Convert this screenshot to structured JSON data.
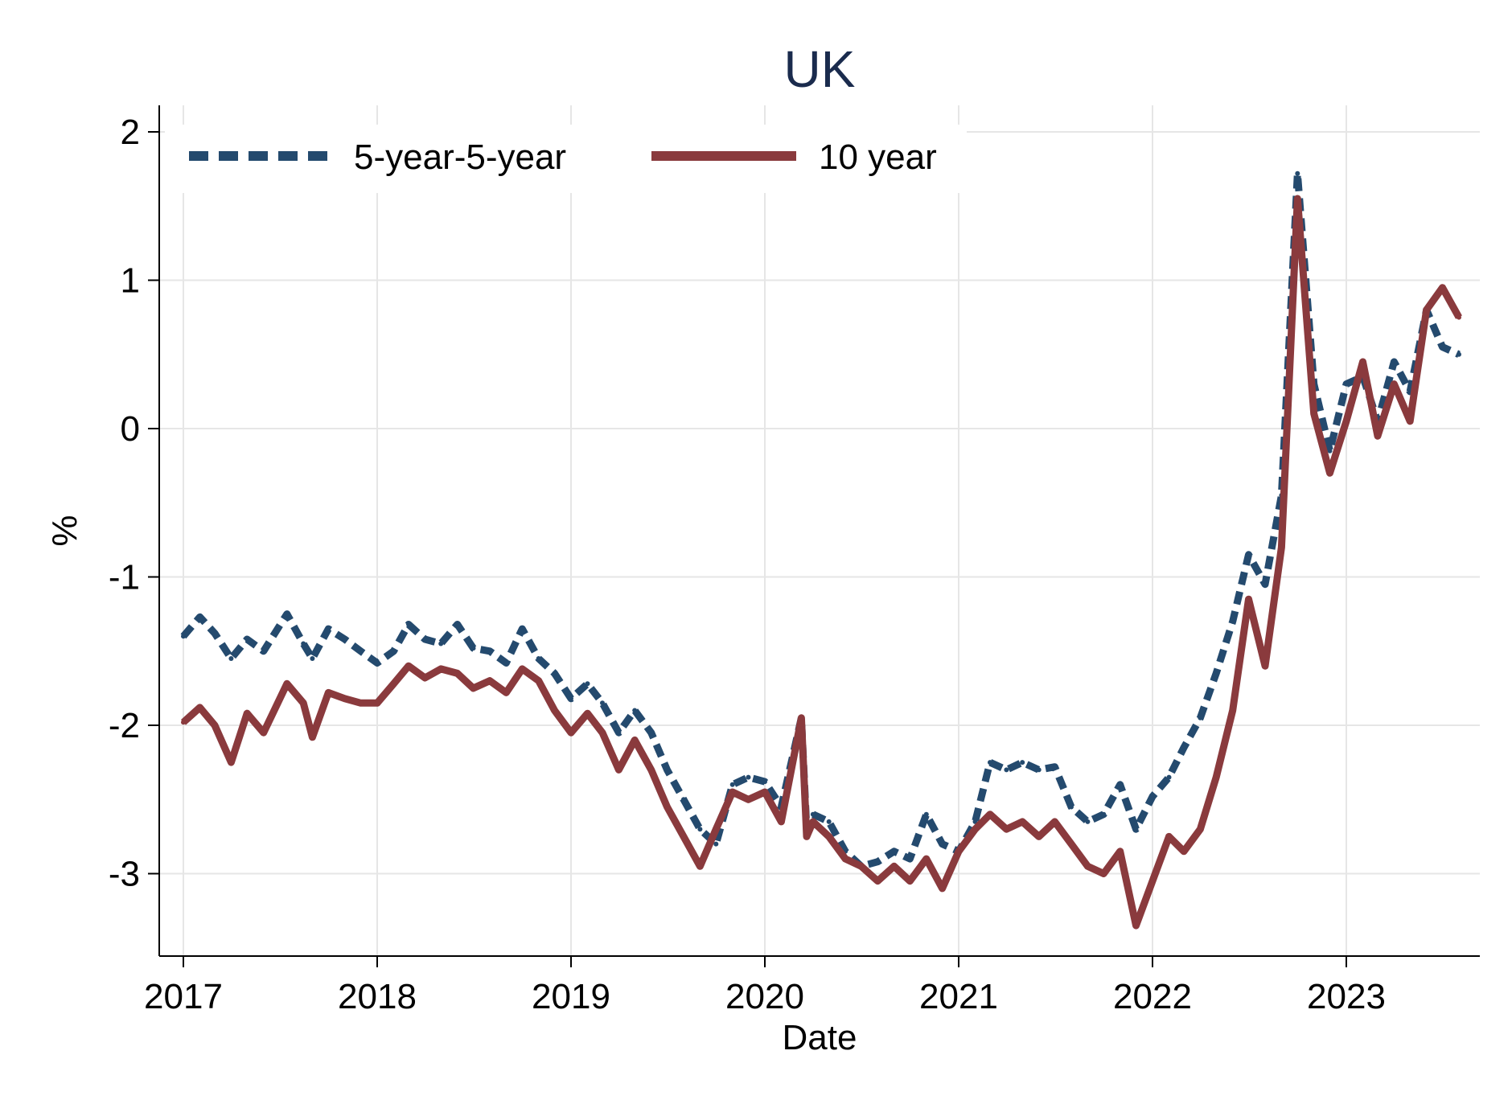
{
  "chart_data": {
    "type": "line",
    "title": "UK",
    "xlabel": "Date",
    "ylabel": "%",
    "x_ticks": [
      "2017",
      "2018",
      "2019",
      "2020",
      "2021",
      "2022",
      "2023"
    ],
    "y_ticks": [
      "2",
      "1",
      "0",
      "-1",
      "-2",
      "-3"
    ],
    "xlim": [
      "2017-01-01",
      "2023-08-01"
    ],
    "ylim": [
      -3.6,
      2.15
    ],
    "grid": true,
    "legend": {
      "placement": "top-left",
      "columns": 2
    },
    "series": [
      {
        "name": "5-year-5-year",
        "color": "#244a6e",
        "style": "dashed",
        "points": [
          [
            "2017-01-01",
            -1.4
          ],
          [
            "2017-02-01",
            -1.27
          ],
          [
            "2017-03-01",
            -1.38
          ],
          [
            "2017-04-01",
            -1.55
          ],
          [
            "2017-05-01",
            -1.42
          ],
          [
            "2017-06-01",
            -1.5
          ],
          [
            "2017-07-15",
            -1.25
          ],
          [
            "2017-08-15",
            -1.45
          ],
          [
            "2017-09-01",
            -1.55
          ],
          [
            "2017-10-01",
            -1.35
          ],
          [
            "2017-11-01",
            -1.42
          ],
          [
            "2017-12-01",
            -1.5
          ],
          [
            "2018-01-01",
            -1.58
          ],
          [
            "2018-02-01",
            -1.5
          ],
          [
            "2018-03-01",
            -1.32
          ],
          [
            "2018-04-01",
            -1.42
          ],
          [
            "2018-05-01",
            -1.45
          ],
          [
            "2018-06-01",
            -1.32
          ],
          [
            "2018-07-01",
            -1.48
          ],
          [
            "2018-08-01",
            -1.5
          ],
          [
            "2018-09-01",
            -1.58
          ],
          [
            "2018-10-01",
            -1.35
          ],
          [
            "2018-11-01",
            -1.55
          ],
          [
            "2018-12-01",
            -1.65
          ],
          [
            "2019-01-01",
            -1.82
          ],
          [
            "2019-02-01",
            -1.72
          ],
          [
            "2019-03-01",
            -1.85
          ],
          [
            "2019-04-01",
            -2.05
          ],
          [
            "2019-05-01",
            -1.9
          ],
          [
            "2019-06-01",
            -2.05
          ],
          [
            "2019-07-01",
            -2.3
          ],
          [
            "2019-08-01",
            -2.5
          ],
          [
            "2019-09-01",
            -2.7
          ],
          [
            "2019-10-01",
            -2.8
          ],
          [
            "2019-11-01",
            -2.4
          ],
          [
            "2019-12-01",
            -2.35
          ],
          [
            "2020-01-01",
            -2.38
          ],
          [
            "2020-02-01",
            -2.55
          ],
          [
            "2020-03-10",
            -1.95
          ],
          [
            "2020-03-20",
            -2.7
          ],
          [
            "2020-04-01",
            -2.6
          ],
          [
            "2020-05-01",
            -2.65
          ],
          [
            "2020-06-01",
            -2.85
          ],
          [
            "2020-07-01",
            -2.95
          ],
          [
            "2020-08-01",
            -2.92
          ],
          [
            "2020-09-01",
            -2.85
          ],
          [
            "2020-10-01",
            -2.9
          ],
          [
            "2020-11-01",
            -2.6
          ],
          [
            "2020-12-01",
            -2.8
          ],
          [
            "2021-01-01",
            -2.85
          ],
          [
            "2021-02-01",
            -2.65
          ],
          [
            "2021-03-01",
            -2.25
          ],
          [
            "2021-04-01",
            -2.3
          ],
          [
            "2021-05-01",
            -2.25
          ],
          [
            "2021-06-01",
            -2.3
          ],
          [
            "2021-07-01",
            -2.28
          ],
          [
            "2021-08-01",
            -2.55
          ],
          [
            "2021-09-01",
            -2.65
          ],
          [
            "2021-10-01",
            -2.6
          ],
          [
            "2021-11-01",
            -2.4
          ],
          [
            "2021-12-01",
            -2.7
          ],
          [
            "2022-01-01",
            -2.48
          ],
          [
            "2022-02-01",
            -2.35
          ],
          [
            "2022-03-01",
            -2.15
          ],
          [
            "2022-04-01",
            -1.95
          ],
          [
            "2022-05-01",
            -1.65
          ],
          [
            "2022-06-01",
            -1.3
          ],
          [
            "2022-07-01",
            -0.85
          ],
          [
            "2022-08-01",
            -1.05
          ],
          [
            "2022-09-01",
            -0.45
          ],
          [
            "2022-10-01",
            1.72
          ],
          [
            "2022-11-01",
            0.3
          ],
          [
            "2022-12-01",
            -0.15
          ],
          [
            "2023-01-01",
            0.3
          ],
          [
            "2023-02-01",
            0.35
          ],
          [
            "2023-03-01",
            0.05
          ],
          [
            "2023-04-01",
            0.45
          ],
          [
            "2023-05-01",
            0.25
          ],
          [
            "2023-06-01",
            0.8
          ],
          [
            "2023-07-01",
            0.55
          ],
          [
            "2023-08-01",
            0.5
          ]
        ]
      },
      {
        "name": "10 year",
        "color": "#8a3a3d",
        "style": "solid",
        "points": [
          [
            "2017-01-01",
            -1.98
          ],
          [
            "2017-02-01",
            -1.88
          ],
          [
            "2017-03-01",
            -2.0
          ],
          [
            "2017-04-01",
            -2.25
          ],
          [
            "2017-05-01",
            -1.92
          ],
          [
            "2017-06-01",
            -2.05
          ],
          [
            "2017-07-15",
            -1.72
          ],
          [
            "2017-08-15",
            -1.85
          ],
          [
            "2017-09-01",
            -2.08
          ],
          [
            "2017-10-01",
            -1.78
          ],
          [
            "2017-11-01",
            -1.82
          ],
          [
            "2017-12-01",
            -1.85
          ],
          [
            "2018-01-01",
            -1.85
          ],
          [
            "2018-02-01",
            -1.72
          ],
          [
            "2018-03-01",
            -1.6
          ],
          [
            "2018-04-01",
            -1.68
          ],
          [
            "2018-05-01",
            -1.62
          ],
          [
            "2018-06-01",
            -1.65
          ],
          [
            "2018-07-01",
            -1.75
          ],
          [
            "2018-08-01",
            -1.7
          ],
          [
            "2018-09-01",
            -1.78
          ],
          [
            "2018-10-01",
            -1.62
          ],
          [
            "2018-11-01",
            -1.7
          ],
          [
            "2018-12-01",
            -1.9
          ],
          [
            "2019-01-01",
            -2.05
          ],
          [
            "2019-02-01",
            -1.92
          ],
          [
            "2019-03-01",
            -2.05
          ],
          [
            "2019-04-01",
            -2.3
          ],
          [
            "2019-05-01",
            -2.1
          ],
          [
            "2019-06-01",
            -2.3
          ],
          [
            "2019-07-01",
            -2.55
          ],
          [
            "2019-08-01",
            -2.75
          ],
          [
            "2019-09-01",
            -2.95
          ],
          [
            "2019-10-01",
            -2.7
          ],
          [
            "2019-11-01",
            -2.45
          ],
          [
            "2019-12-01",
            -2.5
          ],
          [
            "2020-01-01",
            -2.45
          ],
          [
            "2020-02-01",
            -2.65
          ],
          [
            "2020-03-10",
            -1.95
          ],
          [
            "2020-03-20",
            -2.75
          ],
          [
            "2020-04-01",
            -2.65
          ],
          [
            "2020-05-01",
            -2.75
          ],
          [
            "2020-06-01",
            -2.9
          ],
          [
            "2020-07-01",
            -2.95
          ],
          [
            "2020-08-01",
            -3.05
          ],
          [
            "2020-09-01",
            -2.95
          ],
          [
            "2020-10-01",
            -3.05
          ],
          [
            "2020-11-01",
            -2.9
          ],
          [
            "2020-12-01",
            -3.1
          ],
          [
            "2021-01-01",
            -2.85
          ],
          [
            "2021-02-01",
            -2.7
          ],
          [
            "2021-03-01",
            -2.6
          ],
          [
            "2021-04-01",
            -2.7
          ],
          [
            "2021-05-01",
            -2.65
          ],
          [
            "2021-06-01",
            -2.75
          ],
          [
            "2021-07-01",
            -2.65
          ],
          [
            "2021-08-01",
            -2.8
          ],
          [
            "2021-09-01",
            -2.95
          ],
          [
            "2021-10-01",
            -3.0
          ],
          [
            "2021-11-01",
            -2.85
          ],
          [
            "2021-12-01",
            -3.35
          ],
          [
            "2022-01-01",
            -3.05
          ],
          [
            "2022-02-01",
            -2.75
          ],
          [
            "2022-03-01",
            -2.85
          ],
          [
            "2022-04-01",
            -2.7
          ],
          [
            "2022-05-01",
            -2.35
          ],
          [
            "2022-06-01",
            -1.9
          ],
          [
            "2022-07-01",
            -1.15
          ],
          [
            "2022-08-01",
            -1.6
          ],
          [
            "2022-09-01",
            -0.8
          ],
          [
            "2022-10-01",
            1.55
          ],
          [
            "2022-11-01",
            0.1
          ],
          [
            "2022-12-01",
            -0.3
          ],
          [
            "2023-01-01",
            0.05
          ],
          [
            "2023-02-01",
            0.45
          ],
          [
            "2023-03-01",
            -0.05
          ],
          [
            "2023-04-01",
            0.3
          ],
          [
            "2023-05-01",
            0.05
          ],
          [
            "2023-06-01",
            0.8
          ],
          [
            "2023-07-01",
            0.95
          ],
          [
            "2023-08-01",
            0.75
          ]
        ]
      }
    ]
  }
}
